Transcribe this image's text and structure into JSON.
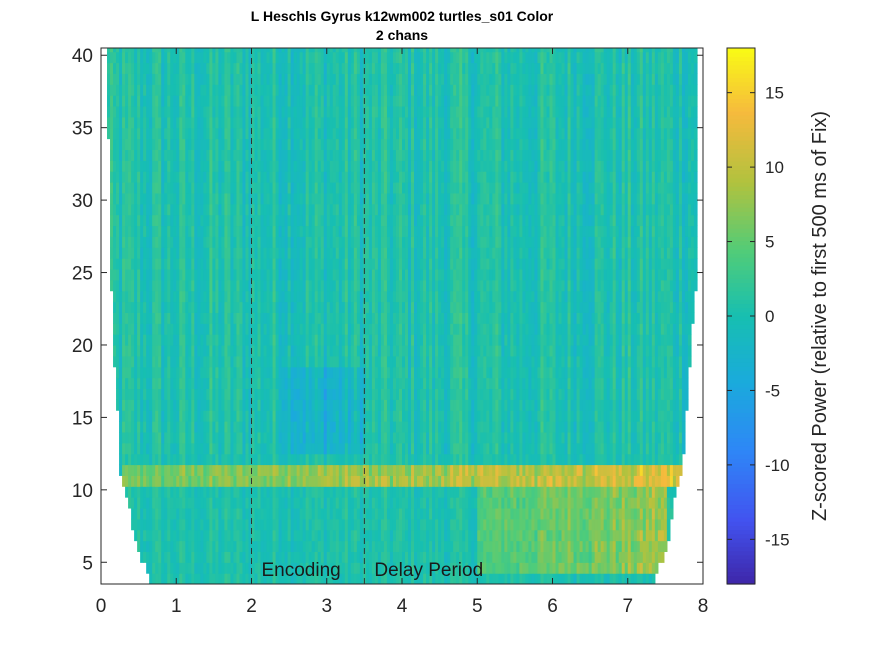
{
  "chart_data": {
    "type": "heatmap",
    "title_line1": "L Heschls Gyrus k12wm002 turtles_s01 Color",
    "title_line2": "2 chans",
    "xlabel": "",
    "ylabel": "",
    "xlim": [
      0,
      8
    ],
    "ylim": [
      3.5,
      40.5
    ],
    "x_ticks": [
      0,
      1,
      2,
      3,
      4,
      5,
      6,
      7,
      8
    ],
    "y_ticks": [
      5,
      10,
      15,
      20,
      25,
      30,
      35,
      40
    ],
    "colorbar": {
      "label": "Z-scored Power (relative to first 500 ms of Fix)",
      "clim": [
        -18,
        18
      ],
      "ticks": [
        -15,
        -10,
        -5,
        0,
        5,
        10,
        15
      ],
      "colormap": "parula"
    },
    "event_lines": [
      {
        "x": 2.0,
        "label": "Encoding",
        "style": "dashed"
      },
      {
        "x": 3.5,
        "label": "Delay Period",
        "style": "dashed"
      }
    ],
    "frequency_range": [
      3.5,
      40
    ],
    "cone_of_influence": [
      {
        "freq": 40,
        "t_start": 0.1,
        "t_end": 7.9
      },
      {
        "freq": 25,
        "t_start": 0.15,
        "t_end": 7.9
      },
      {
        "freq": 18,
        "t_start": 0.2,
        "t_end": 7.8
      },
      {
        "freq": 14,
        "t_start": 0.25,
        "t_end": 7.75
      },
      {
        "freq": 11,
        "t_start": 0.25,
        "t_end": 7.7
      },
      {
        "freq": 9,
        "t_start": 0.35,
        "t_end": 7.6
      },
      {
        "freq": 7,
        "t_start": 0.45,
        "t_end": 7.55
      },
      {
        "freq": 5,
        "t_start": 0.55,
        "t_end": 7.45
      },
      {
        "freq": 3.5,
        "t_start": 0.65,
        "t_end": 7.35
      }
    ],
    "notable_features": [
      {
        "description": "High-power alpha band near 10-11 Hz",
        "freq": [
          10,
          11.5
        ],
        "time": [
          0.25,
          7.7
        ],
        "peak_z": 13
      },
      {
        "description": "Elevated theta/alpha during delay",
        "freq": [
          4,
          10
        ],
        "time": [
          5.0,
          7.5
        ],
        "peak_z": 9
      },
      {
        "description": "Reduced power during encoding",
        "freq": [
          12,
          18
        ],
        "time": [
          2.4,
          3.5
        ],
        "peak_z": -4
      }
    ]
  },
  "colors": {
    "background": "#ffffff",
    "axes": "#262626",
    "event_line": "#333333"
  }
}
